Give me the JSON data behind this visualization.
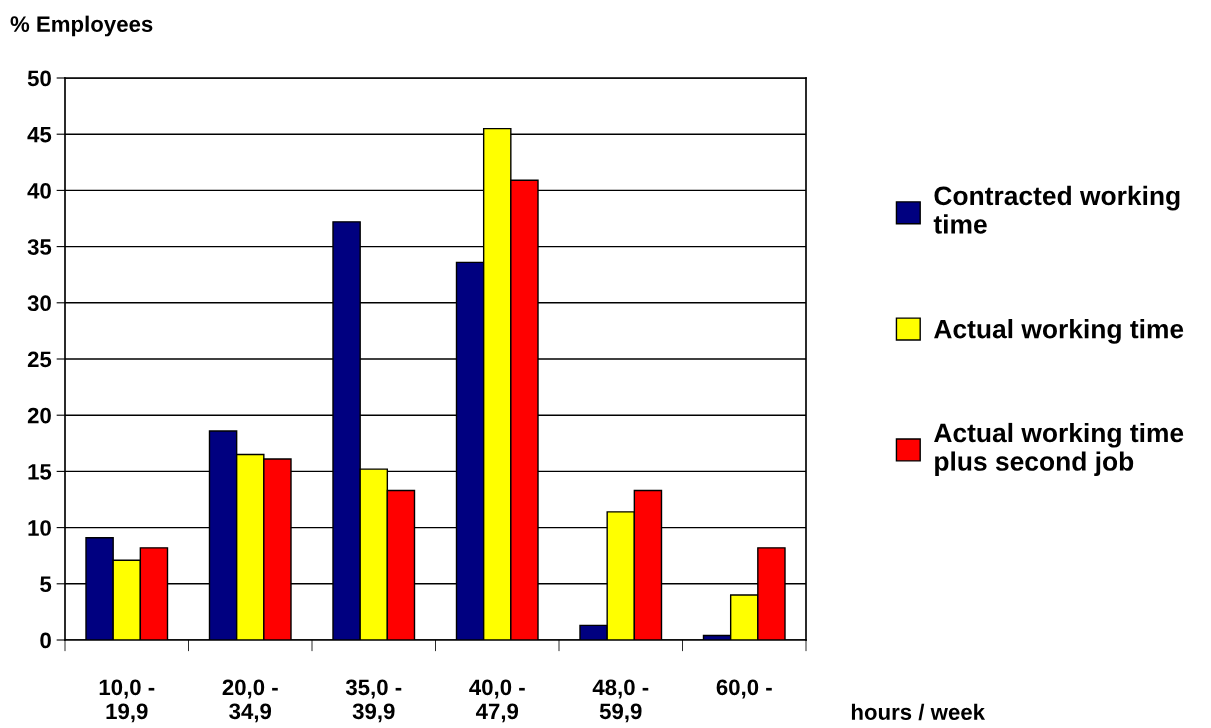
{
  "chart_data": {
    "type": "bar",
    "ylabel": "% Employees",
    "xlabel": "hours / week",
    "categories": [
      "10,0 -\n19,9",
      "20,0 -\n34,9",
      "35,0 -\n39,9",
      "40,0 -\n47,9",
      "48,0 -\n59,9",
      "60,0 -"
    ],
    "series": [
      {
        "name": "Contracted working\ntime",
        "color": "#000080",
        "values": [
          9.1,
          18.6,
          37.2,
          33.6,
          1.3,
          0.4
        ]
      },
      {
        "name": "Actual working time",
        "color": "#ffff00",
        "values": [
          7.1,
          16.5,
          15.2,
          45.5,
          11.4,
          4.0
        ]
      },
      {
        "name": "Actual working time\nplus second job",
        "color": "#ff0000",
        "values": [
          8.2,
          16.1,
          13.3,
          40.9,
          13.3,
          8.2
        ]
      }
    ],
    "ylim": [
      0,
      50
    ],
    "yticks": [
      0,
      5,
      10,
      15,
      20,
      25,
      30,
      35,
      40,
      45,
      50
    ],
    "grid": "y",
    "legend": "right"
  }
}
